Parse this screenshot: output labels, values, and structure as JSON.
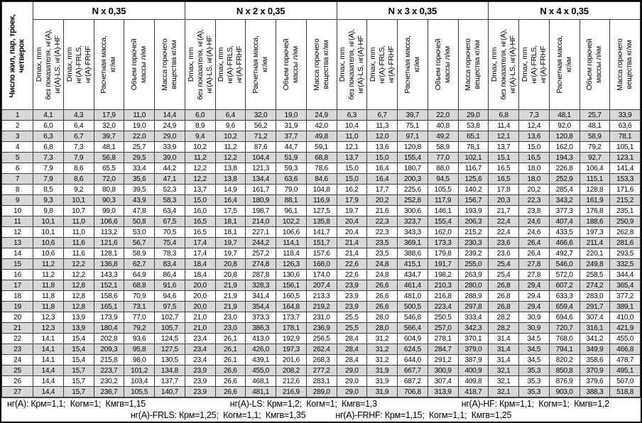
{
  "table": {
    "corner_header": "Число жил, пар, троек,\nчетверок",
    "groups": [
      {
        "title": "N x 0,35"
      },
      {
        "title": "N x 2 x 0,35"
      },
      {
        "title": "N x 3 x 0,35"
      },
      {
        "title": "N x 4 x 0,35"
      }
    ],
    "sub_headers": [
      "Dmax, mm\nбез показателя, нг(А),\nнг(А)-LS, нг(А)-HF",
      "Dmax, mm\nнг(А)-FRLS,\nнг(А)-FRHF",
      "Расчетная масса,\nкг/км",
      "Объем горючей\nмассы л/км",
      "Масса горючего\nвещества кг/км"
    ],
    "rows": [
      {
        "n": "1",
        "values": [
          "4,1",
          "4,3",
          "17,9",
          "11,0",
          "14,4",
          "6,0",
          "6,4",
          "32,0",
          "19,0",
          "24,9",
          "6,3",
          "6,7",
          "39,7",
          "22,0",
          "29,0",
          "6,8",
          "7,3",
          "48,1",
          "25,7",
          "33,9"
        ]
      },
      {
        "n": "2",
        "values": [
          "6,0",
          "6,4",
          "32,0",
          "19,0",
          "24,9",
          "8,9",
          "9,6",
          "56,2",
          "31,9",
          "42,0",
          "10,4",
          "11,3",
          "75,1",
          "40,8",
          "53,8",
          "11,4",
          "12,4",
          "92,0",
          "48,1",
          "63,6"
        ]
      },
      {
        "n": "3",
        "values": [
          "6,3",
          "6,7",
          "39,7",
          "22,0",
          "29,0",
          "9,4",
          "10,2",
          "71,2",
          "37,7",
          "49,8",
          "11,0",
          "12,0",
          "97,1",
          "49,2",
          "65,1",
          "12,1",
          "13,6",
          "120,8",
          "58,9",
          "78,1"
        ]
      },
      {
        "n": "4",
        "values": [
          "6,8",
          "7,3",
          "48,1",
          "25,7",
          "33,9",
          "10,2",
          "11,2",
          "87,6",
          "44,7",
          "59,1",
          "12,1",
          "13,6",
          "120,8",
          "58,9",
          "78,1",
          "13,7",
          "15,0",
          "162,0",
          "79,2",
          "105,1"
        ]
      },
      {
        "n": "5",
        "values": [
          "7,3",
          "7,9",
          "56,8",
          "29,5",
          "39,0",
          "11,2",
          "12,2",
          "104,4",
          "51,9",
          "68,8",
          "13,7",
          "15,0",
          "155,4",
          "77,0",
          "102,1",
          "15,1",
          "16,5",
          "194,3",
          "92,7",
          "123,1"
        ]
      },
      {
        "n": "6",
        "values": [
          "7,9",
          "8,6",
          "65,5",
          "33,4",
          "44,2",
          "12,2",
          "13,8",
          "121,3",
          "59,3",
          "78,6",
          "15,0",
          "16,4",
          "180,7",
          "88,0",
          "116,7",
          "16,5",
          "18,0",
          "226,8",
          "106,4",
          "141,4"
        ]
      },
      {
        "n": "7",
        "values": [
          "7,9",
          "8,6",
          "72,0",
          "35,6",
          "47,1",
          "12,2",
          "13,8",
          "134,4",
          "63,6",
          "84,6",
          "15,0",
          "16,4",
          "200,3",
          "94,5",
          "125,6",
          "16,5",
          "18,0",
          "252,9",
          "115,1",
          "153,3"
        ]
      },
      {
        "n": "8",
        "values": [
          "8,5",
          "9,2",
          "80,8",
          "39,5",
          "52,3",
          "13,7",
          "14,9",
          "161,7",
          "79,0",
          "104,8",
          "16,2",
          "17,7",
          "225,6",
          "105,5",
          "140,2",
          "17,8",
          "20,2",
          "285,4",
          "128,8",
          "171,6"
        ]
      },
      {
        "n": "9",
        "values": [
          "9,3",
          "10,1",
          "90,3",
          "43,9",
          "58,3",
          "15,0",
          "16,4",
          "180,9",
          "88,1",
          "116,9",
          "17,9",
          "20,2",
          "252,8",
          "117,9",
          "156,7",
          "20,3",
          "22,3",
          "343,2",
          "161,9",
          "215,2"
        ]
      },
      {
        "n": "10",
        "values": [
          "9,8",
          "10,7",
          "99,0",
          "47,8",
          "63,4",
          "16,0",
          "17,5",
          "198,7",
          "96,1",
          "127,5",
          "19,7",
          "21,6",
          "300,6",
          "146,1",
          "193,9",
          "21,7",
          "23,8",
          "377,3",
          "176,8",
          "235,1"
        ]
      },
      {
        "n": "11",
        "values": [
          "10,1",
          "11,0",
          "106,6",
          "50,8",
          "67,5",
          "16,5",
          "18,1",
          "214,0",
          "102,2",
          "135,8",
          "20,4",
          "22,3",
          "323,7",
          "155,4",
          "206,3",
          "22,4",
          "24,6",
          "407,4",
          "188,6",
          "250,9"
        ]
      },
      {
        "n": "12",
        "values": [
          "10,1",
          "11,0",
          "113,2",
          "53,0",
          "70,5",
          "16,5",
          "18,1",
          "227,1",
          "106,6",
          "141,7",
          "20,4",
          "22,3",
          "343,3",
          "162,0",
          "215,2",
          "22,4",
          "24,6",
          "433,5",
          "197,3",
          "262,8"
        ]
      },
      {
        "n": "13",
        "values": [
          "10,6",
          "11,6",
          "121,6",
          "56,7",
          "75,4",
          "17,4",
          "19,7",
          "244,2",
          "114,1",
          "151,7",
          "21,4",
          "23,5",
          "369,1",
          "173,3",
          "230,3",
          "23,6",
          "26,4",
          "466,6",
          "211,4",
          "281,6"
        ]
      },
      {
        "n": "14",
        "values": [
          "10,6",
          "11,6",
          "128,1",
          "58,9",
          "78,3",
          "17,4",
          "19,7",
          "257,2",
          "118,4",
          "157,6",
          "21,4",
          "23,5",
          "388,6",
          "179,8",
          "239,2",
          "23,6",
          "26,4",
          "492,7",
          "220,1",
          "293,5"
        ]
      },
      {
        "n": "15",
        "values": [
          "11,2",
          "12,2",
          "136,8",
          "62,7",
          "83,4",
          "18,4",
          "20,8",
          "274,8",
          "126,3",
          "168,0",
          "22,6",
          "24,8",
          "415,1",
          "191,7",
          "255,0",
          "25,4",
          "27,8",
          "546,0",
          "249,8",
          "332,5"
        ]
      },
      {
        "n": "16",
        "values": [
          "11,2",
          "12,2",
          "143,3",
          "64,9",
          "86,4",
          "18,4",
          "20,8",
          "287,8",
          "130,6",
          "174,0",
          "22,6",
          "24,8",
          "434,7",
          "198,2",
          "263,9",
          "25,4",
          "27,8",
          "572,0",
          "258,5",
          "344,4"
        ]
      },
      {
        "n": "17",
        "values": [
          "11,8",
          "12,8",
          "152,1",
          "68,8",
          "91,6",
          "20,0",
          "21,9",
          "328,3",
          "156,1",
          "207,4",
          "23,9",
          "26,6",
          "461,4",
          "210,3",
          "280,0",
          "26,8",
          "29,4",
          "607,2",
          "274,2",
          "365,4"
        ]
      },
      {
        "n": "18",
        "values": [
          "11,8",
          "12,8",
          "158,6",
          "70,9",
          "94,6",
          "20,0",
          "21,9",
          "341,4",
          "160,5",
          "213,3",
          "23,9",
          "26,6",
          "481,0",
          "216,8",
          "288,9",
          "26,8",
          "29,4",
          "633,3",
          "283,0",
          "377,2"
        ]
      },
      {
        "n": "19",
        "values": [
          "11,8",
          "12,8",
          "165,1",
          "73,1",
          "97,5",
          "20,0",
          "21,9",
          "354,4",
          "164,8",
          "219,2",
          "23,9",
          "26,6",
          "500,5",
          "223,4",
          "297,8",
          "26,8",
          "29,4",
          "659,4",
          "291,7",
          "389,1"
        ]
      },
      {
        "n": "20",
        "values": [
          "12,3",
          "13,9",
          "173,9",
          "77,0",
          "102,7",
          "21,0",
          "23,0",
          "373,3",
          "173,7",
          "231,0",
          "25,5",
          "28,0",
          "546,8",
          "250,5",
          "333,4",
          "28,2",
          "30,9",
          "694,6",
          "307,4",
          "410,0"
        ]
      },
      {
        "n": "21",
        "values": [
          "12,3",
          "13,9",
          "180,4",
          "79,2",
          "105,7",
          "21,0",
          "23,0",
          "386,3",
          "178,1",
          "236,9",
          "25,5",
          "28,0",
          "566,4",
          "257,0",
          "342,3",
          "28,2",
          "30,9",
          "720,7",
          "316,1",
          "421,9"
        ]
      },
      {
        "n": "22",
        "values": [
          "14,1",
          "15,4",
          "202,8",
          "93,6",
          "124,5",
          "23,4",
          "26,1",
          "413,0",
          "192,9",
          "256,5",
          "28,4",
          "31,2",
          "604,9",
          "278,1",
          "370,1",
          "31,4",
          "34,5",
          "768,0",
          "341,2",
          "455,0"
        ]
      },
      {
        "n": "23",
        "values": [
          "14,1",
          "15,4",
          "209,3",
          "95,8",
          "127,5",
          "23,4",
          "26,1",
          "426,0",
          "197,3",
          "262,4",
          "28,4",
          "31,2",
          "624,5",
          "284,7",
          "379,0",
          "31,4",
          "34,5",
          "794,1",
          "349,9",
          "466,8"
        ]
      },
      {
        "n": "24",
        "values": [
          "14,1",
          "15,4",
          "215,8",
          "98,0",
          "130,5",
          "23,4",
          "26,1",
          "439,1",
          "201,6",
          "268,3",
          "28,4",
          "31,2",
          "644,0",
          "291,2",
          "387,9",
          "31,4",
          "34,5",
          "820,2",
          "358,6",
          "478,7"
        ]
      },
      {
        "n": "25",
        "values": [
          "14,4",
          "15,7",
          "223,7",
          "101,2",
          "134,8",
          "23,9",
          "26,6",
          "455,0",
          "208,2",
          "277,2",
          "29,0",
          "31,9",
          "667,7",
          "300,9",
          "400,9",
          "32,1",
          "35,3",
          "850,8",
          "370,9",
          "495,1"
        ]
      },
      {
        "n": "26",
        "values": [
          "14,4",
          "15,7",
          "230,2",
          "103,4",
          "137,7",
          "23,9",
          "26,6",
          "468,1",
          "212,6",
          "283,1",
          "29,0",
          "31,9",
          "687,2",
          "307,4",
          "409,8",
          "32,1",
          "35,3",
          "876,9",
          "379,6",
          "507,0"
        ]
      },
      {
        "n": "27",
        "values": [
          "14,4",
          "15,7",
          "236,7",
          "105,5",
          "140,7",
          "23,9",
          "26,6",
          "481,1",
          "216,9",
          "289,0",
          "29,0",
          "31,9",
          "706,8",
          "313,9",
          "418,7",
          "32,1",
          "35,3",
          "903,0",
          "388,3",
          "518,8"
        ]
      }
    ]
  },
  "footnotes": {
    "line1": [
      "нг(А): Крм=1,1;  Когм=1;  Кмгв=1,15",
      "нг(А)-LS: Крм=1,2;  Когм=1;  Кмгв=1,3",
      "нг(А)-HF: Крм=1,1;  Когм=1;  Кмгв=1,2"
    ],
    "line2": [
      "нг(А)-FRLS: Крм=1,25;  Когм=1,1;  Кмгв=1,35",
      "нг(А)-FRHF: Крм=1,15;  Когм=1,1;  Кмгв=1,25"
    ]
  },
  "colors": {
    "row_shaded": "#d8d8d8",
    "grid": "#3d3d3d",
    "frame": "#000000"
  }
}
